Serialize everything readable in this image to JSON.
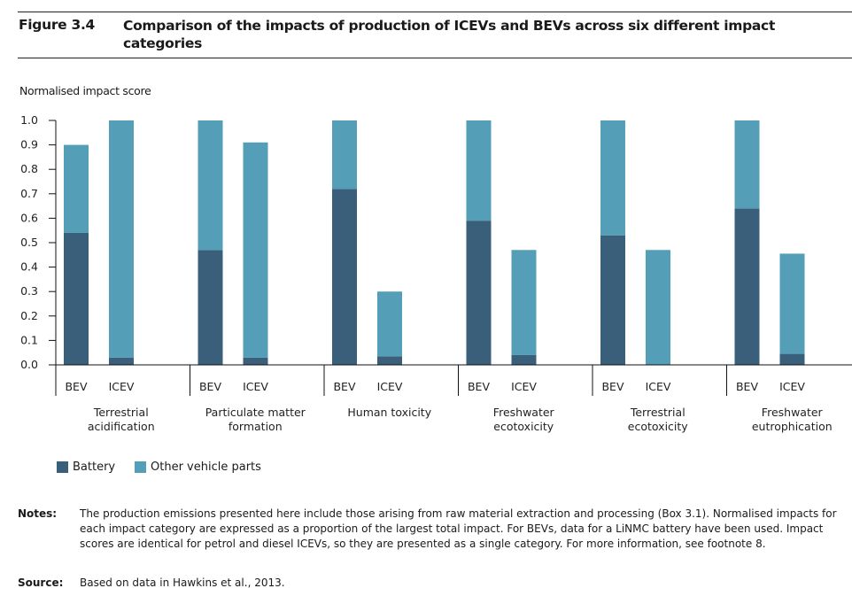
{
  "figure": {
    "number": "Figure 3.4",
    "title": "Comparison of the impacts of production of ICEVs and BEVs across six different impact categories"
  },
  "colors": {
    "battery": "#3a5f7a",
    "other": "#559eb8",
    "axis": "#111111"
  },
  "chart_data": {
    "type": "bar",
    "stacked": true,
    "title": "Comparison of the impacts of production of ICEVs and BEVs across six different impact categories",
    "ylabel": "Normalised impact score",
    "xlabel": "",
    "ylim": [
      0,
      1.0
    ],
    "yticks": [
      "0.0",
      "0.1",
      "0.2",
      "0.3",
      "0.4",
      "0.5",
      "0.6",
      "0.7",
      "0.8",
      "0.9",
      "1.0"
    ],
    "grid": false,
    "legend_position": "bottom-left",
    "groups": [
      {
        "label": "Terrestrial acidification",
        "label_lines": [
          "Terrestrial",
          "acidification"
        ],
        "bars": [
          {
            "name": "BEV",
            "battery": 0.54,
            "other": 0.36
          },
          {
            "name": "ICEV",
            "battery": 0.03,
            "other": 0.97
          }
        ]
      },
      {
        "label": "Particulate matter formation",
        "label_lines": [
          "Particulate matter",
          "formation"
        ],
        "bars": [
          {
            "name": "BEV",
            "battery": 0.47,
            "other": 0.53
          },
          {
            "name": "ICEV",
            "battery": 0.03,
            "other": 0.88
          }
        ]
      },
      {
        "label": "Human toxicity",
        "label_lines": [
          "Human toxicity"
        ],
        "bars": [
          {
            "name": "BEV",
            "battery": 0.72,
            "other": 0.28
          },
          {
            "name": "ICEV",
            "battery": 0.035,
            "other": 0.265
          }
        ]
      },
      {
        "label": "Freshwater ecotoxicity",
        "label_lines": [
          "Freshwater",
          "ecotoxicity"
        ],
        "bars": [
          {
            "name": "BEV",
            "battery": 0.59,
            "other": 0.41
          },
          {
            "name": "ICEV",
            "battery": 0.04,
            "other": 0.43
          }
        ]
      },
      {
        "label": "Terrestrial ecotoxicity",
        "label_lines": [
          "Terrestrial",
          "ecotoxicity"
        ],
        "bars": [
          {
            "name": "BEV",
            "battery": 0.53,
            "other": 0.47
          },
          {
            "name": "ICEV",
            "battery": 0.0,
            "other": 0.47
          }
        ]
      },
      {
        "label": "Freshwater eutrophication",
        "label_lines": [
          "Freshwater",
          "eutrophication"
        ],
        "bars": [
          {
            "name": "BEV",
            "battery": 0.64,
            "other": 0.36
          },
          {
            "name": "ICEV",
            "battery": 0.045,
            "other": 0.41
          }
        ]
      }
    ],
    "series": [
      {
        "name": "Battery",
        "key": "battery"
      },
      {
        "name": "Other vehicle parts",
        "key": "other"
      }
    ]
  },
  "legend": {
    "battery": "Battery",
    "other": "Other vehicle parts"
  },
  "notes": {
    "notes_label": "Notes:",
    "notes_text": "The production emissions presented here include those arising from raw material extraction and processing (Box 3.1). Normalised impacts for each impact category are expressed as a proportion of the largest total impact. For BEVs, data for a LiNMC battery have been used. Impact scores are identical for petrol and diesel ICEVs, so they are presented as a single category. For more information, see footnote 8.",
    "source_label": "Source:",
    "source_text": "Based on data in Hawkins et al., 2013."
  }
}
